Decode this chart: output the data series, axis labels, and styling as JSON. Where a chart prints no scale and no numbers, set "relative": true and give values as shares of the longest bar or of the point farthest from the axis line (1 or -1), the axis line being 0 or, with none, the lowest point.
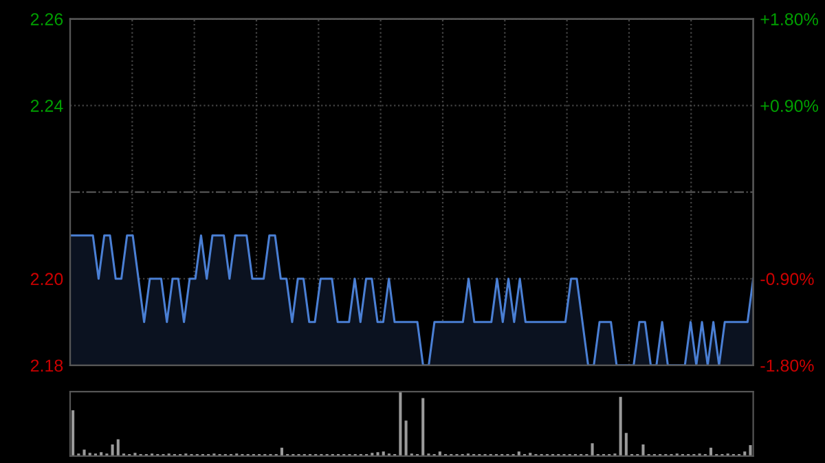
{
  "chart_data": [
    {
      "type": "area",
      "categories": [
        null,
        null,
        null,
        null,
        null,
        null,
        null,
        null,
        null,
        null,
        null,
        null,
        null,
        null,
        null,
        null,
        null,
        null,
        null,
        null,
        null,
        null,
        null,
        null,
        null,
        null,
        null,
        null,
        null,
        null,
        null,
        null,
        null,
        null,
        null,
        null,
        null,
        null,
        null,
        null,
        null,
        null,
        null,
        null,
        null,
        null,
        null,
        null,
        null,
        null,
        null,
        null,
        null,
        null,
        null,
        null,
        null,
        null,
        null,
        null,
        null,
        null,
        null,
        null,
        null,
        null,
        null,
        null,
        null,
        null,
        null,
        null,
        null,
        null,
        null,
        null,
        null,
        null,
        null,
        null,
        null,
        null,
        null,
        null,
        null,
        null,
        null,
        null,
        null,
        null,
        null,
        null,
        null,
        null,
        null,
        null,
        null,
        null,
        null,
        null,
        null,
        null,
        null,
        null,
        null,
        null,
        null,
        null,
        null,
        null,
        null,
        null,
        null,
        null,
        null,
        null,
        null,
        null,
        null,
        null,
        null
      ],
      "series": [
        {
          "color": "#4a7fd4",
          "values": [
            2.21,
            2.21,
            2.21,
            2.21,
            2.21,
            2.2,
            2.21,
            2.21,
            2.2,
            2.2,
            2.21,
            2.21,
            2.2,
            2.19,
            2.2,
            2.2,
            2.2,
            2.19,
            2.2,
            2.2,
            2.19,
            2.2,
            2.2,
            2.21,
            2.2,
            2.21,
            2.21,
            2.21,
            2.2,
            2.21,
            2.21,
            2.21,
            2.2,
            2.2,
            2.2,
            2.21,
            2.21,
            2.2,
            2.2,
            2.19,
            2.2,
            2.2,
            2.19,
            2.19,
            2.2,
            2.2,
            2.2,
            2.19,
            2.19,
            2.19,
            2.2,
            2.19,
            2.2,
            2.2,
            2.19,
            2.19,
            2.2,
            2.19,
            2.19,
            2.19,
            2.19,
            2.19,
            2.18,
            2.18,
            2.19,
            2.19,
            2.19,
            2.19,
            2.19,
            2.19,
            2.2,
            2.19,
            2.19,
            2.19,
            2.19,
            2.2,
            2.19,
            2.2,
            2.19,
            2.2,
            2.19,
            2.19,
            2.19,
            2.19,
            2.19,
            2.19,
            2.19,
            2.19,
            2.2,
            2.2,
            2.19,
            2.18,
            2.18,
            2.19,
            2.19,
            2.19,
            2.18,
            2.18,
            2.18,
            2.18,
            2.19,
            2.19,
            2.18,
            2.18,
            2.19,
            2.18,
            2.18,
            2.18,
            2.18,
            2.19,
            2.18,
            2.19,
            2.18,
            2.19,
            2.18,
            2.19,
            2.19,
            2.19,
            2.19,
            2.19,
            2.2
          ]
        }
      ],
      "ylim": [
        2.18,
        2.26
      ],
      "yticks": [
        2.18,
        {
          "value": 2.2,
          "label": "2.20"
        },
        2.24,
        2.26
      ],
      "y2lim": [
        -1.8,
        1.8
      ],
      "y2ticks": [
        {
          "value": -1.8,
          "label": "-1.80%"
        },
        {
          "value": -0.9,
          "label": "-0.90%"
        },
        {
          "value": 0.9,
          "label": "+0.90%"
        },
        {
          "value": 1.8,
          "label": "+1.80%"
        }
      ],
      "ref_lines": [
        {
          "axis": "y",
          "value": 2.22,
          "color": "#555555",
          "line_style": "dashdot"
        }
      ],
      "grid": true,
      "line_style": "solid",
      "marker": "none"
    },
    {
      "type": "bar",
      "relative": true,
      "categories": [
        null,
        null,
        null,
        null,
        null,
        null,
        null,
        null,
        null,
        null,
        null,
        null,
        null,
        null,
        null,
        null,
        null,
        null,
        null,
        null,
        null,
        null,
        null,
        null,
        null,
        null,
        null,
        null,
        null,
        null,
        null,
        null,
        null,
        null,
        null,
        null,
        null,
        null,
        null,
        null,
        null,
        null,
        null,
        null,
        null,
        null,
        null,
        null,
        null,
        null,
        null,
        null,
        null,
        null,
        null,
        null,
        null,
        null,
        null,
        null,
        null,
        null,
        null,
        null,
        null,
        null,
        null,
        null,
        null,
        null,
        null,
        null,
        null,
        null,
        null,
        null,
        null,
        null,
        null,
        null,
        null,
        null,
        null,
        null,
        null,
        null,
        null,
        null,
        null,
        null,
        null,
        null,
        null,
        null,
        null,
        null,
        null,
        null,
        null,
        null,
        null,
        null,
        null,
        null,
        null,
        null,
        null,
        null,
        null,
        null,
        null,
        null,
        null,
        null,
        null,
        null,
        null,
        null,
        null,
        null,
        null
      ],
      "series": [
        {
          "color": "#9a9a9a",
          "values": [
            0.71,
            0.04,
            0.1,
            0.05,
            0.04,
            0.06,
            0.04,
            0.18,
            0.26,
            0.04,
            0.03,
            0.05,
            0.03,
            0.03,
            0.04,
            0.03,
            0.03,
            0.04,
            0.03,
            0.03,
            0.04,
            0.03,
            0.03,
            0.03,
            0.03,
            0.04,
            0.03,
            0.03,
            0.03,
            0.04,
            0.03,
            0.03,
            0.03,
            0.03,
            0.03,
            0.03,
            0.03,
            0.13,
            0.03,
            0.03,
            0.03,
            0.03,
            0.03,
            0.03,
            0.03,
            0.03,
            0.03,
            0.03,
            0.03,
            0.03,
            0.03,
            0.03,
            0.03,
            0.05,
            0.06,
            0.07,
            0.04,
            0.03,
            1.0,
            0.55,
            0.04,
            0.03,
            0.9,
            0.04,
            0.03,
            0.07,
            0.03,
            0.03,
            0.03,
            0.03,
            0.04,
            0.03,
            0.03,
            0.03,
            0.03,
            0.03,
            0.03,
            0.03,
            0.03,
            0.07,
            0.03,
            0.05,
            0.03,
            0.03,
            0.03,
            0.03,
            0.03,
            0.03,
            0.03,
            0.03,
            0.03,
            0.03,
            0.2,
            0.03,
            0.03,
            0.03,
            0.04,
            0.92,
            0.36,
            0.03,
            0.03,
            0.18,
            0.03,
            0.03,
            0.03,
            0.03,
            0.03,
            0.04,
            0.03,
            0.03,
            0.03,
            0.04,
            0.03,
            0.13,
            0.03,
            0.03,
            0.04,
            0.03,
            0.03,
            0.07,
            0.17
          ]
        }
      ],
      "grid": false
    }
  ]
}
